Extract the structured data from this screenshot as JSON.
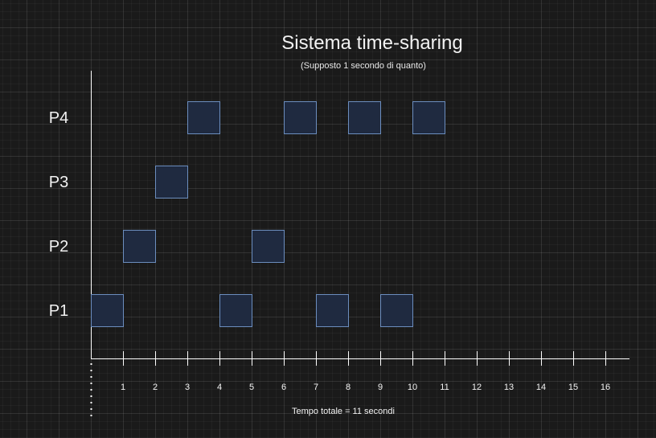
{
  "title": "Sistema time-sharing",
  "subtitle": "(Supposto 1 secondo di quanto)",
  "footer": "Tempo totale = 11 secondi",
  "colors": {
    "block_fill": "#1f2a40",
    "block_stroke": "#6c8ebf",
    "axis": "#ffffff",
    "text": "#f2f2f2"
  },
  "chart_data": {
    "type": "gantt",
    "rows": [
      "P1",
      "P2",
      "P3",
      "P4"
    ],
    "ticks": [
      "1",
      "2",
      "3",
      "4",
      "5",
      "6",
      "7",
      "8",
      "9",
      "10",
      "11",
      "12",
      "13",
      "14",
      "15",
      "16"
    ],
    "xlim": [
      0,
      16.75
    ],
    "slots": [
      {
        "process": "P1",
        "start": 0,
        "end": 1
      },
      {
        "process": "P2",
        "start": 1,
        "end": 2
      },
      {
        "process": "P3",
        "start": 2,
        "end": 3
      },
      {
        "process": "P4",
        "start": 3,
        "end": 4
      },
      {
        "process": "P1",
        "start": 4,
        "end": 5
      },
      {
        "process": "P2",
        "start": 5,
        "end": 6
      },
      {
        "process": "P4",
        "start": 6,
        "end": 7
      },
      {
        "process": "P1",
        "start": 7,
        "end": 8
      },
      {
        "process": "P4",
        "start": 8,
        "end": 9
      },
      {
        "process": "P1",
        "start": 9,
        "end": 10
      },
      {
        "process": "P4",
        "start": 10,
        "end": 11
      }
    ]
  }
}
